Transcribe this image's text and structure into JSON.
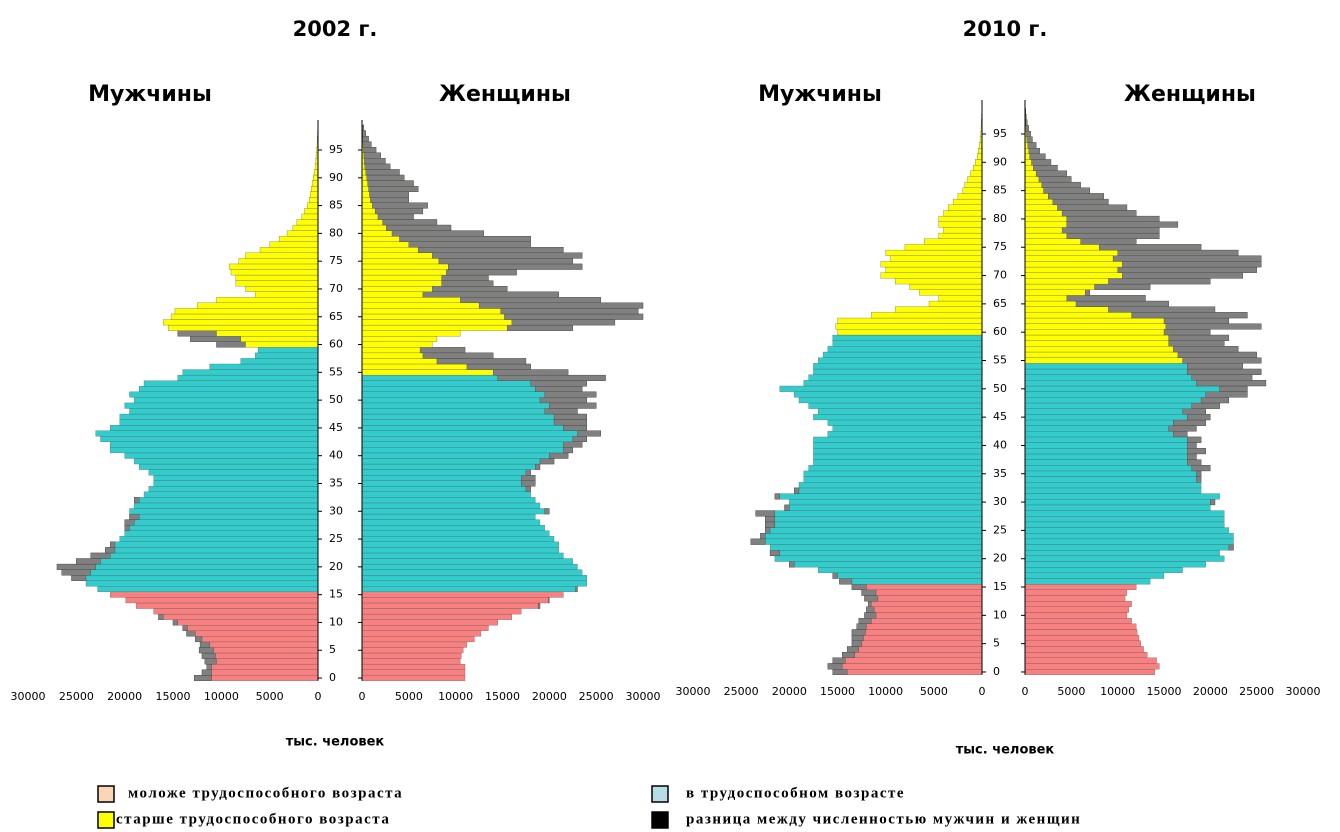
{
  "chart_data": [
    {
      "type": "pyramid",
      "title": "2002 г.",
      "xlabel": "тыс. человек",
      "xlim": [
        0,
        30000
      ],
      "xticks": [
        0,
        5000,
        10000,
        15000,
        20000,
        25000,
        30000
      ],
      "ylim": [
        0,
        100
      ],
      "yticks": [
        0,
        5,
        10,
        15,
        20,
        25,
        30,
        35,
        40,
        45,
        50,
        55,
        60,
        65,
        70,
        75,
        80,
        85,
        90,
        95
      ],
      "y": [
        0,
        1,
        2,
        3,
        4,
        5,
        6,
        7,
        8,
        9,
        10,
        11,
        12,
        13,
        14,
        15,
        16,
        17,
        18,
        19,
        20,
        21,
        22,
        23,
        24,
        25,
        26,
        27,
        28,
        29,
        30,
        31,
        32,
        33,
        34,
        35,
        36,
        37,
        38,
        39,
        40,
        41,
        42,
        43,
        44,
        45,
        46,
        47,
        48,
        49,
        50,
        51,
        52,
        53,
        54,
        55,
        56,
        57,
        58,
        59,
        60,
        61,
        62,
        63,
        64,
        65,
        66,
        67,
        68,
        69,
        70,
        71,
        72,
        73,
        74,
        75,
        76,
        77,
        78,
        79,
        80,
        81,
        82,
        83,
        84,
        85,
        86,
        87,
        88,
        89,
        90,
        91,
        92,
        93,
        94,
        95,
        96,
        97,
        98,
        99
      ],
      "series": [
        {
          "name": "Мужчины",
          "working_age": [
            16,
            60
          ],
          "values": [
            12800,
            12000,
            11500,
            11700,
            12000,
            12300,
            12200,
            12700,
            13600,
            14000,
            15000,
            16500,
            17000,
            18800,
            19900,
            21500,
            22800,
            24000,
            25500,
            26500,
            27000,
            25000,
            23500,
            22000,
            21500,
            20500,
            20000,
            20000,
            20000,
            19500,
            19500,
            19000,
            19000,
            18000,
            17500,
            17000,
            17000,
            17500,
            18500,
            19000,
            20000,
            21500,
            21500,
            22500,
            23000,
            21500,
            20500,
            20500,
            19500,
            20000,
            19000,
            19500,
            18500,
            18000,
            14500,
            14000,
            11200,
            8000,
            6500,
            6200,
            10500,
            13200,
            14500,
            15500,
            16000,
            15200,
            14800,
            12500,
            10500,
            6500,
            7500,
            8500,
            8500,
            9000,
            9200,
            8200,
            7500,
            6000,
            5000,
            4000,
            3200,
            2600,
            2200,
            1700,
            1400,
            1100,
            900,
            800,
            700,
            600,
            500,
            400,
            300,
            250,
            200,
            150,
            100,
            80,
            50,
            30
          ]
        },
        {
          "name": "Женщины",
          "working_age": [
            16,
            55
          ],
          "values": [
            11000,
            11000,
            11000,
            10500,
            10600,
            10800,
            11200,
            12000,
            12700,
            13500,
            14500,
            16000,
            17000,
            19000,
            20000,
            21500,
            23000,
            24000,
            24000,
            23500,
            23000,
            22500,
            21500,
            21000,
            21000,
            20500,
            20000,
            19500,
            19000,
            18500,
            20000,
            19000,
            18500,
            18000,
            18000,
            18500,
            18500,
            18000,
            19000,
            20500,
            22000,
            22500,
            23500,
            24000,
            25500,
            24000,
            24000,
            24000,
            23000,
            25000,
            24000,
            25000,
            23500,
            24000,
            26000,
            22000,
            18000,
            17500,
            14000,
            11000,
            7500,
            8000,
            10500,
            22500,
            27000,
            30000,
            29500,
            30000,
            25500,
            21000,
            15500,
            14000,
            13500,
            16500,
            23500,
            22500,
            23500,
            21500,
            18000,
            18000,
            13000,
            9500,
            8000,
            5500,
            6500,
            7000,
            5000,
            5000,
            6000,
            5500,
            4500,
            4000,
            3000,
            2500,
            2000,
            1500,
            1000,
            700,
            400,
            200
          ]
        }
      ]
    },
    {
      "type": "pyramid",
      "title": "2010 г.",
      "xlabel": "тыс. человек",
      "xlim": [
        0,
        30000
      ],
      "xticks": [
        0,
        5000,
        10000,
        15000,
        20000,
        25000,
        30000
      ],
      "ylim": [
        0,
        100
      ],
      "yticks": [
        0,
        5,
        10,
        15,
        20,
        25,
        30,
        35,
        40,
        45,
        50,
        55,
        60,
        65,
        70,
        75,
        80,
        85,
        90,
        95
      ],
      "y": [
        0,
        1,
        2,
        3,
        4,
        5,
        6,
        7,
        8,
        9,
        10,
        11,
        12,
        13,
        14,
        15,
        16,
        17,
        18,
        19,
        20,
        21,
        22,
        23,
        24,
        25,
        26,
        27,
        28,
        29,
        30,
        31,
        32,
        33,
        34,
        35,
        36,
        37,
        38,
        39,
        40,
        41,
        42,
        43,
        44,
        45,
        46,
        47,
        48,
        49,
        50,
        51,
        52,
        53,
        54,
        55,
        56,
        57,
        58,
        59,
        60,
        61,
        62,
        63,
        64,
        65,
        66,
        67,
        68,
        69,
        70,
        71,
        72,
        73,
        74,
        75,
        76,
        77,
        78,
        79,
        80,
        81,
        82,
        83,
        84,
        85,
        86,
        87,
        88,
        89,
        90,
        91,
        92,
        93,
        94,
        95,
        96,
        97,
        98,
        99
      ],
      "series": [
        {
          "name": "Мужчины",
          "working_age": [
            16,
            60
          ],
          "values": [
            15500,
            16000,
            15500,
            14500,
            14000,
            13500,
            13500,
            13500,
            13000,
            12800,
            12200,
            12000,
            11800,
            12200,
            12500,
            13500,
            14800,
            15500,
            17000,
            20000,
            21500,
            22000,
            22000,
            24000,
            23000,
            22500,
            22500,
            22500,
            23500,
            20500,
            20000,
            21500,
            19500,
            19000,
            18500,
            18500,
            18000,
            17500,
            17500,
            17500,
            17500,
            17500,
            16000,
            15500,
            16000,
            17500,
            17000,
            18000,
            19000,
            19500,
            21000,
            18500,
            18000,
            17500,
            17500,
            17000,
            16500,
            16000,
            15500,
            15500,
            15000,
            15200,
            15000,
            11500,
            9000,
            5500,
            4500,
            6500,
            7500,
            9000,
            10500,
            10000,
            10500,
            9500,
            10000,
            8000,
            6000,
            4500,
            4000,
            4500,
            4500,
            4000,
            3500,
            3000,
            2500,
            2000,
            1800,
            1500,
            1200,
            900,
            700,
            500,
            400,
            300,
            200,
            150,
            100,
            80,
            50,
            30
          ]
        },
        {
          "name": "Женщины",
          "working_age": [
            16,
            55
          ],
          "values": [
            14000,
            14500,
            14200,
            13200,
            12800,
            12500,
            12300,
            12100,
            12000,
            11500,
            11000,
            11200,
            11500,
            10800,
            11000,
            12000,
            13500,
            15000,
            17000,
            19500,
            21500,
            21000,
            22500,
            22500,
            22500,
            22000,
            21500,
            21500,
            21500,
            20000,
            20500,
            21000,
            19000,
            19000,
            19000,
            19000,
            20000,
            19000,
            18500,
            19500,
            18500,
            19000,
            17500,
            18500,
            19500,
            20000,
            19500,
            21000,
            22000,
            24000,
            24000,
            26000,
            24500,
            25500,
            23500,
            25500,
            25000,
            23000,
            21500,
            22000,
            20000,
            25500,
            22000,
            24000,
            20500,
            15500,
            13000,
            7000,
            13500,
            20000,
            23500,
            25000,
            25500,
            25500,
            23000,
            19000,
            12000,
            14500,
            14500,
            16500,
            14500,
            12000,
            11000,
            9000,
            8500,
            7000,
            6000,
            5000,
            4500,
            3500,
            2800,
            2200,
            1600,
            1200,
            800,
            600,
            400,
            250,
            150,
            80
          ]
        }
      ]
    }
  ],
  "legend": [
    {
      "name": "моложе трудоспособного возраста",
      "color": "#fbd5b5",
      "bar_color": "#f98080"
    },
    {
      "name": "в трудоспособном возрасте",
      "color": "#b7dde8",
      "bar_color": "#33cccc"
    },
    {
      "name": "старше трудоспособного возраста",
      "color": "#ffff00",
      "bar_color": "#ffff00"
    },
    {
      "name": "разница между численностью мужчин и женщин",
      "color": "#000000",
      "bar_color": "#808080"
    }
  ]
}
